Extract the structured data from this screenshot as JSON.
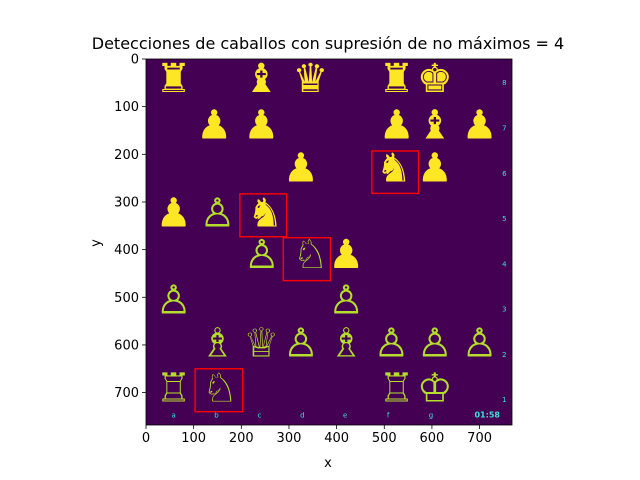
{
  "chart_data": {
    "type": "image",
    "title": "Detecciones de caballos con supresión de no máximos = 4",
    "xlabel": "x",
    "ylabel": "y",
    "xlim": [
      0,
      768
    ],
    "ylim": [
      768,
      0
    ],
    "xticks": [
      0,
      100,
      200,
      300,
      400,
      500,
      600,
      700
    ],
    "yticks": [
      0,
      100,
      200,
      300,
      400,
      500,
      600,
      700
    ],
    "colors": {
      "background": "#440154",
      "black_piece": "#fde725",
      "white_piece": "#b5de2b",
      "box": "#ff0000",
      "board_text": "#3ee0d8"
    },
    "file_labels": [
      "a",
      "b",
      "c",
      "d",
      "e",
      "f",
      "g"
    ],
    "rank_labels": [
      "8",
      "7",
      "6",
      "5",
      "4",
      "3",
      "2",
      "1"
    ],
    "clock": "01:58",
    "pieces": [
      {
        "x": 58,
        "y": 50,
        "glyph": "♜",
        "side": "black"
      },
      {
        "x": 242,
        "y": 50,
        "glyph": "♝",
        "side": "black"
      },
      {
        "x": 345,
        "y": 50,
        "glyph": "♛",
        "side": "black"
      },
      {
        "x": 526,
        "y": 50,
        "glyph": "♜",
        "side": "black"
      },
      {
        "x": 606,
        "y": 50,
        "glyph": "♚",
        "side": "black"
      },
      {
        "x": 143,
        "y": 148,
        "glyph": "♟",
        "side": "black"
      },
      {
        "x": 242,
        "y": 148,
        "glyph": "♟",
        "side": "black"
      },
      {
        "x": 526,
        "y": 148,
        "glyph": "♟",
        "side": "black"
      },
      {
        "x": 606,
        "y": 148,
        "glyph": "♝",
        "side": "black"
      },
      {
        "x": 700,
        "y": 148,
        "glyph": "♟",
        "side": "black"
      },
      {
        "x": 325,
        "y": 238,
        "glyph": "♟",
        "side": "black"
      },
      {
        "x": 520,
        "y": 238,
        "glyph": "♞",
        "side": "black"
      },
      {
        "x": 606,
        "y": 238,
        "glyph": "♟",
        "side": "black"
      },
      {
        "x": 58,
        "y": 333,
        "glyph": "♟",
        "side": "black"
      },
      {
        "x": 250,
        "y": 333,
        "glyph": "♞",
        "side": "black"
      },
      {
        "x": 420,
        "y": 420,
        "glyph": "♟",
        "side": "black"
      },
      {
        "x": 150,
        "y": 333,
        "glyph": "♙",
        "side": "white"
      },
      {
        "x": 243,
        "y": 420,
        "glyph": "♙",
        "side": "white"
      },
      {
        "x": 345,
        "y": 420,
        "glyph": "♘",
        "side": "white"
      },
      {
        "x": 58,
        "y": 515,
        "glyph": "♙",
        "side": "white"
      },
      {
        "x": 420,
        "y": 515,
        "glyph": "♙",
        "side": "white"
      },
      {
        "x": 150,
        "y": 605,
        "glyph": "♗",
        "side": "white"
      },
      {
        "x": 242,
        "y": 605,
        "glyph": "♕",
        "side": "white"
      },
      {
        "x": 325,
        "y": 605,
        "glyph": "♙",
        "side": "white"
      },
      {
        "x": 420,
        "y": 605,
        "glyph": "♗",
        "side": "white"
      },
      {
        "x": 515,
        "y": 605,
        "glyph": "♙",
        "side": "white"
      },
      {
        "x": 606,
        "y": 605,
        "glyph": "♙",
        "side": "white"
      },
      {
        "x": 700,
        "y": 605,
        "glyph": "♙",
        "side": "white"
      },
      {
        "x": 58,
        "y": 700,
        "glyph": "♖",
        "side": "white"
      },
      {
        "x": 155,
        "y": 700,
        "glyph": "♘",
        "side": "white"
      },
      {
        "x": 526,
        "y": 700,
        "glyph": "♖",
        "side": "white"
      },
      {
        "x": 606,
        "y": 700,
        "glyph": "♔",
        "side": "white"
      }
    ],
    "detections": [
      {
        "x1": 474,
        "y1": 193,
        "x2": 572,
        "y2": 282
      },
      {
        "x1": 197,
        "y1": 283,
        "x2": 295,
        "y2": 373
      },
      {
        "x1": 288,
        "y1": 375,
        "x2": 387,
        "y2": 465
      },
      {
        "x1": 103,
        "y1": 650,
        "x2": 203,
        "y2": 740
      }
    ]
  }
}
